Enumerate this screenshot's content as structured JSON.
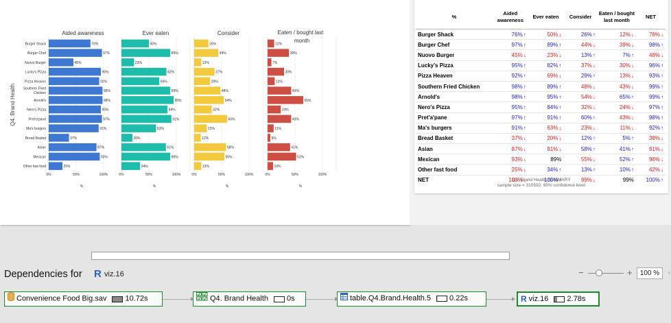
{
  "chart_data": {
    "type": "bar",
    "ylabel": "Q4. Brand Health",
    "categories": [
      "Burger Shack",
      "Burger Chef",
      "Nuovo Burger",
      "Lucky's Pizza",
      "Pizza Heaven",
      "Southern Fried Chicken",
      "Arnold's",
      "Nero's Pizza",
      "Pret'a'pane",
      "Ma's burgers",
      "Bread Basket",
      "Asian",
      "Mexican",
      "Other fast food"
    ],
    "category_labels": [
      "Burger Shack",
      "Burger Chef",
      "Nuovo Burger",
      "Lucky's Pizza",
      "Pizza Heaven",
      "Southern Fried",
      "Chicken",
      "Arnold's",
      "Nero's Pizza",
      "Pret'a'pane",
      "Ma's burgers",
      "Bread Basket",
      "Asian",
      "Mexican",
      "Other fast food"
    ],
    "xticks": [
      "0%",
      "50%",
      "100%"
    ],
    "xlabel": "%",
    "xlim": [
      0,
      100
    ],
    "series": [
      {
        "name": "Aided awareness",
        "color": "#3e78d2",
        "values": [
          76,
          97,
          45,
          95,
          92,
          98,
          98,
          95,
          97,
          91,
          37,
          87,
          93,
          25
        ]
      },
      {
        "name": "Ever eaten",
        "color": "#1ebcaa",
        "values": [
          50,
          89,
          23,
          82,
          69,
          89,
          95,
          84,
          91,
          63,
          20,
          81,
          89,
          34
        ]
      },
      {
        "name": "Consider",
        "color": "#f3c93e",
        "values": [
          26,
          44,
          13,
          37,
          29,
          48,
          54,
          32,
          60,
          23,
          12,
          58,
          55,
          13
        ]
      },
      {
        "name": "Eaten / bought last month",
        "color": "#cd4e42",
        "values": [
          12,
          39,
          7,
          30,
          13,
          43,
          65,
          24,
          43,
          11,
          5,
          41,
          52,
          10
        ]
      }
    ]
  },
  "table": {
    "corner": "%",
    "headers": [
      "Aided awareness",
      "Ever eaten",
      "Consider",
      "Eaten / bought last month",
      "NET"
    ],
    "rows": [
      {
        "name": "Burger Shack",
        "cells": [
          {
            "v": "76%",
            "d": "up"
          },
          {
            "v": "50%",
            "d": "down"
          },
          {
            "v": "26%",
            "d": "up"
          },
          {
            "v": "12%",
            "d": "down"
          },
          {
            "v": "78%",
            "d": "down"
          }
        ]
      },
      {
        "name": "Burger Chef",
        "cells": [
          {
            "v": "97%",
            "d": "up"
          },
          {
            "v": "89%",
            "d": "up"
          },
          {
            "v": "44%",
            "d": "down"
          },
          {
            "v": "39%",
            "d": "down"
          },
          {
            "v": "98%",
            "d": "up"
          }
        ]
      },
      {
        "name": "Nuovo Burger",
        "cells": [
          {
            "v": "45%",
            "d": "down"
          },
          {
            "v": "23%",
            "d": "down"
          },
          {
            "v": "13%",
            "d": "up"
          },
          {
            "v": "7%",
            "d": "up"
          },
          {
            "v": "48%",
            "d": "down"
          }
        ]
      },
      {
        "name": "Lucky's Pizza",
        "cells": [
          {
            "v": "95%",
            "d": "up"
          },
          {
            "v": "82%",
            "d": "up"
          },
          {
            "v": "37%",
            "d": "down"
          },
          {
            "v": "30%",
            "d": "down"
          },
          {
            "v": "96%",
            "d": "up"
          }
        ]
      },
      {
        "name": "Pizza Heaven",
        "cells": [
          {
            "v": "92%",
            "d": "up"
          },
          {
            "v": "69%",
            "d": "down"
          },
          {
            "v": "29%",
            "d": "up"
          },
          {
            "v": "13%",
            "d": "down"
          },
          {
            "v": "93%",
            "d": "up"
          }
        ]
      },
      {
        "name": "Southern Fried Chicken",
        "cells": [
          {
            "v": "98%",
            "d": "up"
          },
          {
            "v": "89%",
            "d": "up"
          },
          {
            "v": "48%",
            "d": "down"
          },
          {
            "v": "43%",
            "d": "down"
          },
          {
            "v": "99%",
            "d": "up"
          }
        ]
      },
      {
        "name": "Arnold's",
        "cells": [
          {
            "v": "98%",
            "d": "up"
          },
          {
            "v": "95%",
            "d": "up"
          },
          {
            "v": "54%",
            "d": "down"
          },
          {
            "v": "65%",
            "d": "up"
          },
          {
            "v": "99%",
            "d": "up"
          }
        ]
      },
      {
        "name": "Nero's Pizza",
        "cells": [
          {
            "v": "95%",
            "d": "up"
          },
          {
            "v": "84%",
            "d": "up"
          },
          {
            "v": "32%",
            "d": "down"
          },
          {
            "v": "24%",
            "d": "down"
          },
          {
            "v": "97%",
            "d": "up"
          }
        ]
      },
      {
        "name": "Pret'a'pane",
        "cells": [
          {
            "v": "97%",
            "d": "up"
          },
          {
            "v": "91%",
            "d": "up"
          },
          {
            "v": "60%",
            "d": "up"
          },
          {
            "v": "43%",
            "d": "down"
          },
          {
            "v": "98%",
            "d": "up"
          }
        ]
      },
      {
        "name": "Ma's burgers",
        "cells": [
          {
            "v": "91%",
            "d": "up"
          },
          {
            "v": "63%",
            "d": "down"
          },
          {
            "v": "23%",
            "d": "down"
          },
          {
            "v": "11%",
            "d": "down"
          },
          {
            "v": "92%",
            "d": "up"
          }
        ]
      },
      {
        "name": "Bread Basket",
        "cells": [
          {
            "v": "37%",
            "d": "down"
          },
          {
            "v": "20%",
            "d": "down"
          },
          {
            "v": "12%",
            "d": "up"
          },
          {
            "v": "5%",
            "d": "up"
          },
          {
            "v": "38%",
            "d": "down"
          }
        ]
      },
      {
        "name": "Asian",
        "cells": [
          {
            "v": "87%",
            "d": "down"
          },
          {
            "v": "81%",
            "d": "down"
          },
          {
            "v": "58%",
            "d": "up"
          },
          {
            "v": "41%",
            "d": "up"
          },
          {
            "v": "91%",
            "d": "down"
          }
        ]
      },
      {
        "name": "Mexican",
        "cells": [
          {
            "v": "93%",
            "d": "down"
          },
          {
            "v": "89%",
            "d": "none"
          },
          {
            "v": "55%",
            "d": "down"
          },
          {
            "v": "52%",
            "d": "up"
          },
          {
            "v": "96%",
            "d": "down"
          }
        ]
      },
      {
        "name": "Other fast food",
        "cells": [
          {
            "v": "25%",
            "d": "down"
          },
          {
            "v": "34%",
            "d": "up"
          },
          {
            "v": "13%",
            "d": "up"
          },
          {
            "v": "10%",
            "d": "up"
          },
          {
            "v": "42%",
            "d": "down"
          }
        ]
      },
      {
        "name": "NET",
        "cells": [
          {
            "v": "100%",
            "d": "down"
          },
          {
            "v": "100%",
            "d": "up"
          },
          {
            "v": "99%",
            "d": "down"
          },
          {
            "v": "99%",
            "d": "none"
          },
          {
            "v": "100%",
            "d": "up"
          }
        ]
      }
    ],
    "footer_title": "Q4. Brand Health SUMMARY",
    "footer_note": "sample size = 310592; 95% confidence level"
  },
  "colors": {
    "up": "#1f1fcf",
    "down": "#e0201f",
    "node_border": "#1a8a2a",
    "r_blue": "#2c62b5"
  },
  "dependencies": {
    "title": "Dependencies for",
    "r_glyph": "R",
    "r_name": "viz.16",
    "zoom": {
      "minus": "−",
      "plus": "+",
      "value": "100 %"
    },
    "nodes": [
      {
        "label": "Convenience Food Big.sav",
        "time": "10.72s",
        "icon": "database-icon",
        "fill": 1.0
      },
      {
        "label": "Q4. Brand Health",
        "time": "0s",
        "icon": "question-grid-icon",
        "fill": 0.0
      },
      {
        "label": "table.Q4.Brand.Health.5",
        "time": "0.22s",
        "icon": "table-icon",
        "fill": 0.05
      },
      {
        "label": "viz.16",
        "time": "2.78s",
        "icon": "r-icon",
        "fill": 0.3
      }
    ]
  }
}
